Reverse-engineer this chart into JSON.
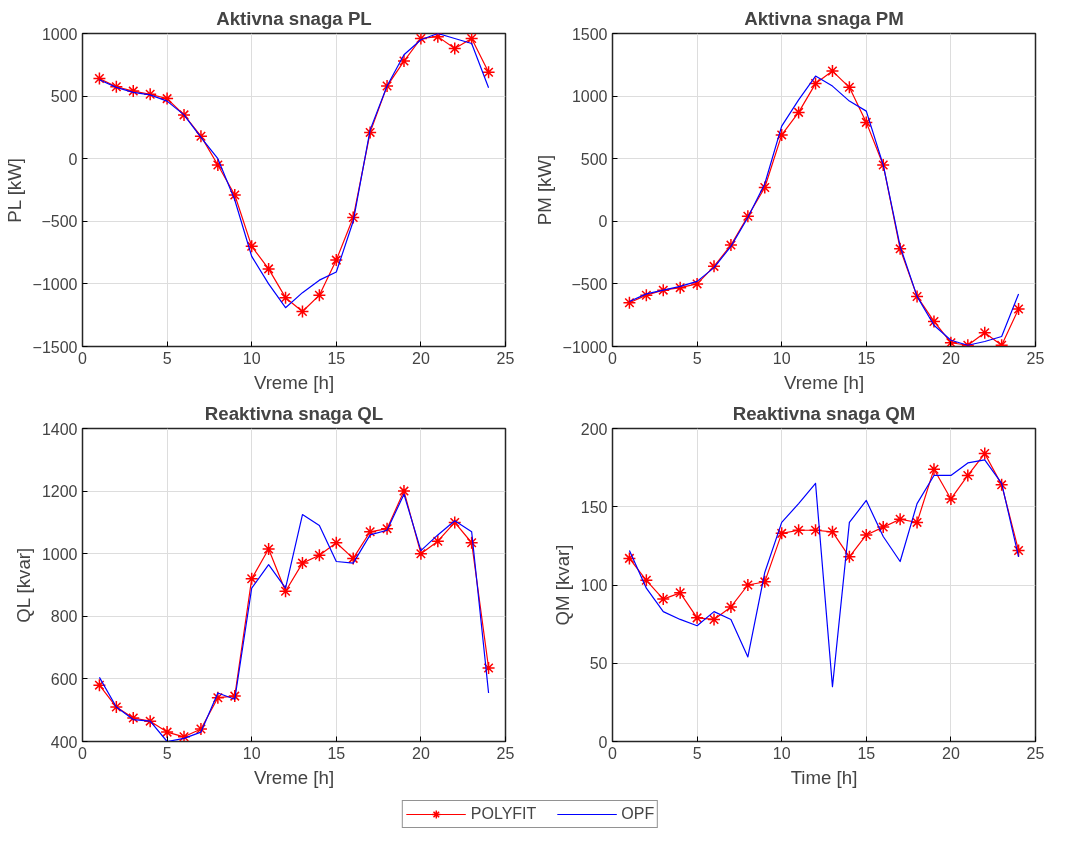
{
  "chart_data": [
    {
      "type": "line",
      "title": "Aktivna snaga PL",
      "xlabel": "Vreme [h]",
      "ylabel": "PL [kW]",
      "x": [
        1,
        2,
        3,
        4,
        5,
        6,
        7,
        8,
        9,
        10,
        11,
        12,
        13,
        14,
        15,
        16,
        17,
        18,
        19,
        20,
        21,
        22,
        23,
        24
      ],
      "xlim": [
        0,
        25
      ],
      "xticks": [
        0,
        5,
        10,
        15,
        20,
        25
      ],
      "ylim": [
        -1500,
        1000
      ],
      "yticks": [
        -1500,
        -1000,
        -500,
        0,
        500,
        1000
      ],
      "grid": true,
      "legend": "bottom",
      "series": [
        {
          "name": "POLYFIT",
          "color": "#ff0000",
          "marker": "cross",
          "values": [
            640,
            575,
            540,
            515,
            480,
            350,
            180,
            -50,
            -290,
            -700,
            -880,
            -1110,
            -1220,
            -1090,
            -810,
            -470,
            210,
            580,
            780,
            960,
            975,
            880,
            960,
            690
          ]
        },
        {
          "name": "OPF",
          "color": "#0000ff",
          "marker": "none",
          "values": [
            630,
            570,
            530,
            510,
            460,
            350,
            170,
            0,
            -330,
            -780,
            -1000,
            -1190,
            -1070,
            -970,
            -905,
            -500,
            230,
            580,
            830,
            950,
            1000,
            960,
            920,
            566
          ]
        }
      ]
    },
    {
      "type": "line",
      "title": "Aktivna snaga PM",
      "xlabel": "Vreme [h]",
      "ylabel": "PM [kW]",
      "x": [
        1,
        2,
        3,
        4,
        5,
        6,
        7,
        8,
        9,
        10,
        11,
        12,
        13,
        14,
        15,
        16,
        17,
        18,
        19,
        20,
        21,
        22,
        23,
        24
      ],
      "xlim": [
        0,
        25
      ],
      "xticks": [
        0,
        5,
        10,
        15,
        20,
        25
      ],
      "ylim": [
        -1000,
        1500
      ],
      "yticks": [
        -1000,
        -500,
        0,
        500,
        1000,
        1500
      ],
      "grid": true,
      "series": [
        {
          "color": "#ff0000",
          "marker": "cross",
          "values": [
            -650,
            -590,
            -550,
            -530,
            -500,
            -360,
            -190,
            40,
            270,
            690,
            870,
            1100,
            1200,
            1070,
            790,
            450,
            -220,
            -600,
            -800,
            -970,
            -990,
            -890,
            -990,
            -700
          ]
        },
        {
          "color": "#0000ff",
          "marker": "none",
          "values": [
            -640,
            -580,
            -550,
            -520,
            -480,
            -370,
            -200,
            30,
            300,
            760,
            970,
            1160,
            1080,
            960,
            880,
            450,
            -200,
            -600,
            -830,
            -950,
            -990,
            -960,
            -920,
            -580
          ]
        }
      ]
    },
    {
      "type": "line",
      "title": "Reaktivna snaga QL",
      "xlabel": "Vreme [h]",
      "ylabel": "QL [kvar]",
      "x": [
        1,
        2,
        3,
        4,
        5,
        6,
        7,
        8,
        9,
        10,
        11,
        12,
        13,
        14,
        15,
        16,
        17,
        18,
        19,
        20,
        21,
        22,
        23,
        24
      ],
      "xlim": [
        0,
        25
      ],
      "xticks": [
        0,
        5,
        10,
        15,
        20,
        25
      ],
      "ylim": [
        400,
        1400
      ],
      "yticks": [
        400,
        600,
        800,
        1000,
        1200,
        1400
      ],
      "grid": true,
      "series": [
        {
          "color": "#ff0000",
          "marker": "cross",
          "values": [
            580,
            510,
            475,
            465,
            430,
            415,
            440,
            540,
            545,
            920,
            1015,
            880,
            970,
            995,
            1035,
            985,
            1070,
            1080,
            1200,
            1000,
            1040,
            1100,
            1035,
            635
          ]
        },
        {
          "color": "#0000ff",
          "marker": "none",
          "values": [
            605,
            510,
            470,
            465,
            400,
            410,
            430,
            555,
            535,
            890,
            965,
            890,
            1125,
            1090,
            975,
            970,
            1060,
            1075,
            1190,
            1010,
            1060,
            1105,
            1070,
            555
          ]
        }
      ]
    },
    {
      "type": "line",
      "title": "Reaktivna snaga QM",
      "xlabel": "Time [h]",
      "ylabel": "QM [kvar]",
      "x": [
        1,
        2,
        3,
        4,
        5,
        6,
        7,
        8,
        9,
        10,
        11,
        12,
        13,
        14,
        15,
        16,
        17,
        18,
        19,
        20,
        21,
        22,
        23,
        24
      ],
      "xlim": [
        0,
        25
      ],
      "xticks": [
        0,
        5,
        10,
        15,
        20,
        25
      ],
      "ylim": [
        0,
        200
      ],
      "yticks": [
        0,
        50,
        100,
        150,
        200
      ],
      "grid": true,
      "series": [
        {
          "color": "#ff0000",
          "marker": "cross",
          "values": [
            117,
            103,
            91,
            95,
            79,
            78,
            86,
            100,
            102,
            133,
            135,
            135,
            134,
            118,
            132,
            137,
            142,
            140,
            174,
            155,
            170,
            184,
            164,
            122
          ]
        },
        {
          "color": "#0000ff",
          "marker": "none",
          "values": [
            122,
            98,
            83,
            78,
            74,
            83,
            78,
            54,
            108,
            140,
            152,
            165,
            35,
            140,
            154,
            131,
            115,
            152,
            170,
            170,
            178,
            180,
            165,
            118
          ]
        }
      ]
    }
  ]
}
